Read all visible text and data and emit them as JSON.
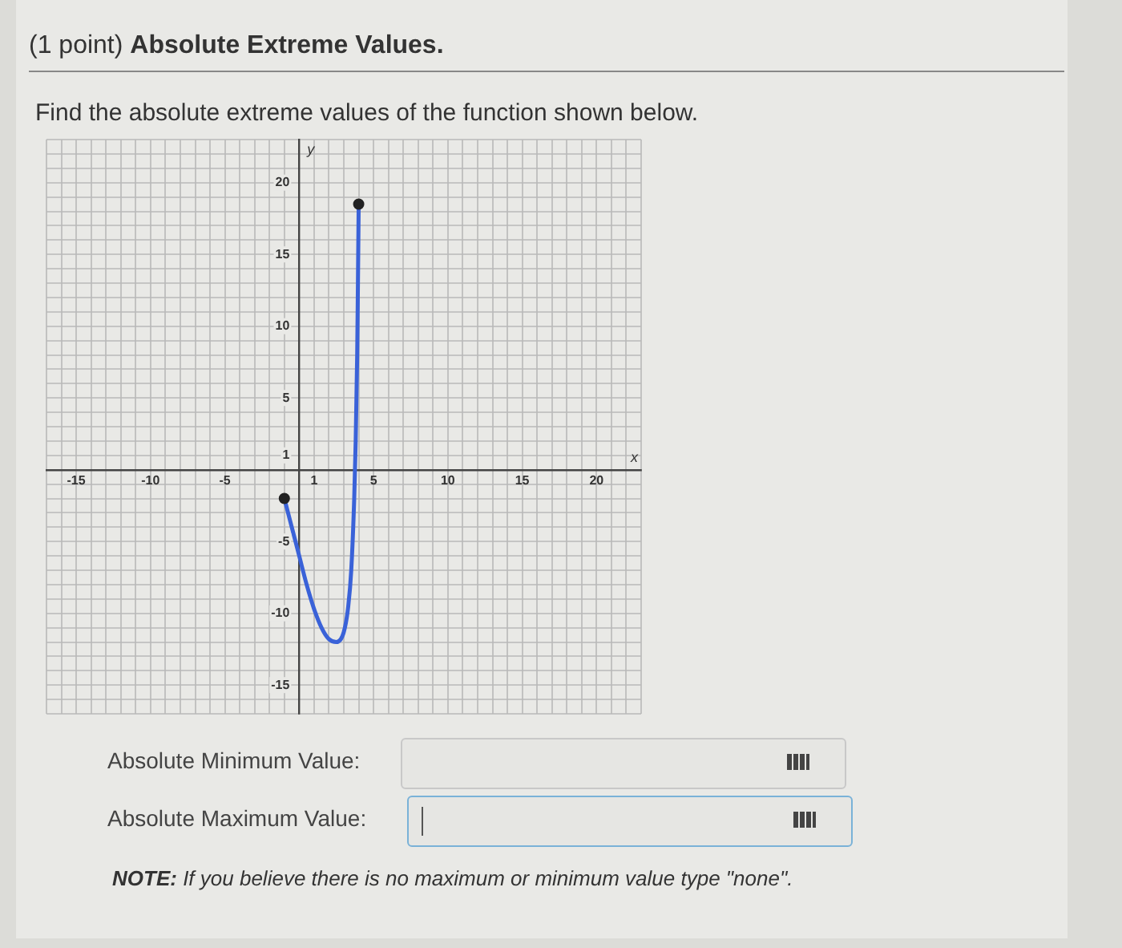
{
  "chart_data": {
    "type": "line",
    "title": "(1 point) Absolute Extreme Values.",
    "subtitle": "Find the absolute extreme values of the function shown below.",
    "xlabel": "x",
    "ylabel": "y",
    "x": [
      -1,
      -0.5,
      0,
      0.5,
      1,
      1.5,
      2,
      2.5,
      3,
      3.3,
      3.5,
      3.7,
      3.8,
      3.9,
      3.95,
      4
    ],
    "series": [
      {
        "color": "#3a62d8",
        "values": [
          -2,
          -4,
          -6,
          -8,
          -9.7,
          -11,
          -11.8,
          -12,
          -11.3,
          -9.5,
          -7,
          -2,
          2,
          8,
          13,
          18.5
        ]
      },
      {
        "type": "scatter",
        "color": "#222222",
        "marker": "circle",
        "x": [
          -1,
          4
        ],
        "values": [
          -2,
          18.5
        ]
      }
    ],
    "xlim": [
      -17,
      23
    ],
    "ylim": [
      -17,
      23
    ],
    "xticks": [
      {
        "value": -17,
        "label": null
      },
      {
        "value": -16,
        "label": null
      },
      -15,
      {
        "value": -14,
        "label": null
      },
      {
        "value": -13,
        "label": null
      },
      {
        "value": -12,
        "label": null
      },
      {
        "value": -11,
        "label": null
      },
      -10,
      {
        "value": -9,
        "label": null
      },
      {
        "value": -8,
        "label": null
      },
      {
        "value": -7,
        "label": null
      },
      {
        "value": -6,
        "label": null
      },
      -5,
      {
        "value": -4,
        "label": null
      },
      {
        "value": -3,
        "label": null
      },
      {
        "value": -2,
        "label": null
      },
      {
        "value": -1,
        "label": null
      },
      {
        "value": 0,
        "label": null
      },
      1,
      {
        "value": 2,
        "label": null
      },
      {
        "value": 3,
        "label": null
      },
      {
        "value": 4,
        "label": null
      },
      5,
      {
        "value": 6,
        "label": null
      },
      {
        "value": 7,
        "label": null
      },
      {
        "value": 8,
        "label": null
      },
      {
        "value": 9,
        "label": null
      },
      10,
      {
        "value": 11,
        "label": null
      },
      {
        "value": 12,
        "label": null
      },
      {
        "value": 13,
        "label": null
      },
      {
        "value": 14,
        "label": null
      },
      15,
      {
        "value": 16,
        "label": null
      },
      {
        "value": 17,
        "label": null
      },
      {
        "value": 18,
        "label": null
      },
      {
        "value": 19,
        "label": null
      },
      20,
      {
        "value": 21,
        "label": null
      },
      {
        "value": 22,
        "label": null
      },
      {
        "value": 23,
        "label": null
      }
    ],
    "yticks": [
      {
        "value": -17,
        "label": null
      },
      {
        "value": -16,
        "label": null
      },
      -15,
      {
        "value": -14,
        "label": null
      },
      {
        "value": -13,
        "label": null
      },
      {
        "value": -12,
        "label": null
      },
      {
        "value": -11,
        "label": null
      },
      -10,
      {
        "value": -9,
        "label": null
      },
      {
        "value": -8,
        "label": null
      },
      {
        "value": -7,
        "label": null
      },
      {
        "value": -6,
        "label": null
      },
      -5,
      {
        "value": -4,
        "label": null
      },
      {
        "value": -3,
        "label": null
      },
      {
        "value": -2,
        "label": null
      },
      {
        "value": -1,
        "label": null
      },
      {
        "value": 0,
        "label": null
      },
      1,
      {
        "value": 2,
        "label": null
      },
      {
        "value": 3,
        "label": null
      },
      {
        "value": 4,
        "label": null
      },
      5,
      {
        "value": 6,
        "label": null
      },
      {
        "value": 7,
        "label": null
      },
      {
        "value": 8,
        "label": null
      },
      {
        "value": 9,
        "label": null
      },
      10,
      {
        "value": 11,
        "label": null
      },
      {
        "value": 12,
        "label": null
      },
      {
        "value": 13,
        "label": null
      },
      {
        "value": 14,
        "label": null
      },
      15,
      {
        "value": 16,
        "label": null
      },
      {
        "value": 17,
        "label": null
      },
      {
        "value": 18,
        "label": null
      },
      {
        "value": 19,
        "label": null
      },
      20,
      {
        "value": 21,
        "label": null
      },
      {
        "value": 22,
        "label": null
      },
      {
        "value": 23,
        "label": null
      }
    ],
    "grid": true,
    "line_style": "solid",
    "annotations": [
      "Absolute Minimum Value:",
      "Absolute Maximum Value:",
      "NOTE: If you believe there is no maximum or minimum value type \"none\"."
    ]
  }
}
